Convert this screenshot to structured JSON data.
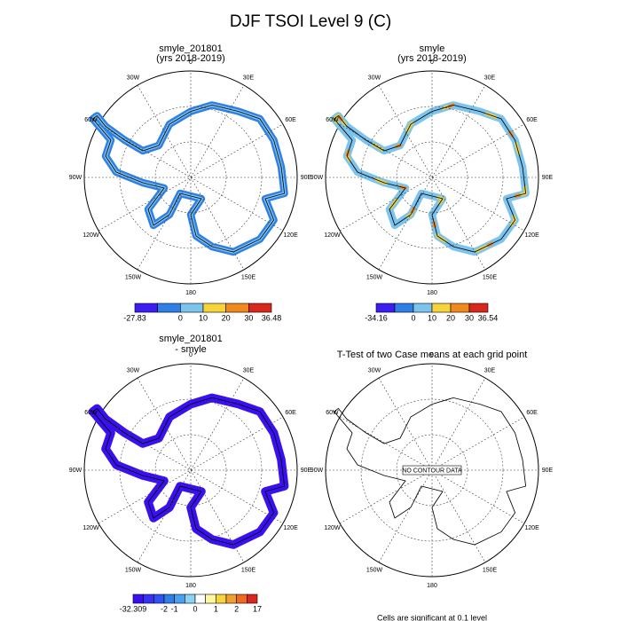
{
  "title": "DJF TSOI Level 9 (C)",
  "lon_labels": [
    "0",
    "30E",
    "60E",
    "90E",
    "120E",
    "150E",
    "180",
    "150W",
    "120W",
    "90W",
    "60W",
    "30W"
  ],
  "panels": [
    {
      "title": [
        "smyle_201801",
        "(yrs 2018-2019)"
      ],
      "colorbar": {
        "labels": [
          -27.83,
          0,
          10,
          20,
          30,
          36.48
        ],
        "colors": [
          "#3c1ef0",
          "#2f7fe6",
          "#7cc4ee",
          "#f5d43c",
          "#f08a1e",
          "#d8281e"
        ]
      }
    },
    {
      "title": [
        "smyle",
        "(yrs 2018-2019)"
      ],
      "colorbar": {
        "labels": [
          -34.16,
          0,
          10,
          20,
          30,
          36.54
        ],
        "colors": [
          "#3c1ef0",
          "#2f7fe6",
          "#7cc4ee",
          "#f5d43c",
          "#f08a1e",
          "#d8281e"
        ]
      }
    },
    {
      "title": [
        "smyle_201801",
        "- smyle"
      ],
      "colorbar": {
        "labels": [
          -32.309,
          -2,
          -1,
          0,
          1,
          2,
          17
        ],
        "colors": [
          "#3a10f0",
          "#3a30f5",
          "#3350f5",
          "#2f7fe6",
          "#4aa0ee",
          "#8cd2f5",
          "#ffffff",
          "#fff7a0",
          "#f5d43c",
          "#f0a030",
          "#f06a1e",
          "#d8281e"
        ]
      }
    },
    {
      "title": [
        "T-Test of two Case means at each grid point"
      ],
      "no_data": "NO CONTOUR DATA",
      "footnote": "Cells are significant at 0.1 level"
    }
  ]
}
